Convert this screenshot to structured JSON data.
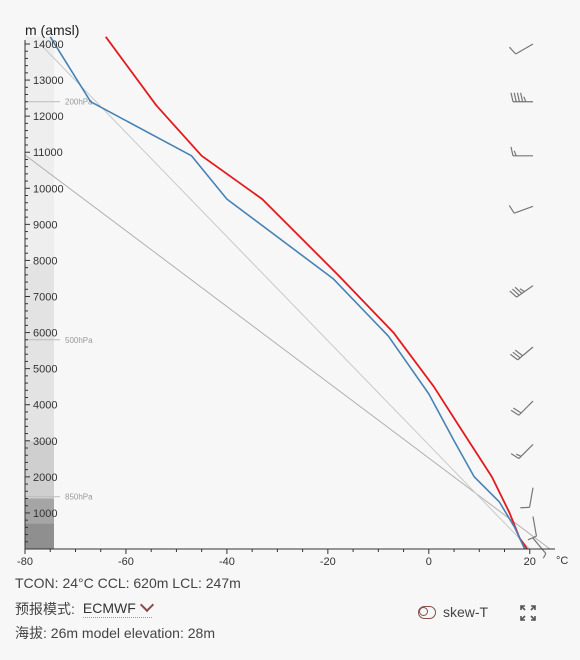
{
  "chart_data": {
    "type": "line",
    "title": "",
    "ylabel": "m (amsl)",
    "xlabel": "°C",
    "ylim": [
      0,
      14200
    ],
    "xlim": [
      -80,
      25
    ],
    "y_ticks": [
      1000,
      2000,
      3000,
      4000,
      5000,
      6000,
      7000,
      8000,
      9000,
      10000,
      11000,
      12000,
      13000,
      14000
    ],
    "x_ticks": [
      -80,
      -60,
      -40,
      -20,
      0,
      20
    ],
    "pressure_levels": [
      {
        "label": "200hPa",
        "height": 12400
      },
      {
        "label": "500hPa",
        "height": 5800
      },
      {
        "label": "850hPa",
        "height": 1450
      }
    ],
    "series": [
      {
        "color": "#e31a1c",
        "points": [
          [
            19.5,
            0
          ],
          [
            18,
            300
          ],
          [
            16,
            1000
          ],
          [
            12.5,
            2000
          ],
          [
            6.5,
            3300
          ],
          [
            1,
            4500
          ],
          [
            -7,
            6000
          ],
          [
            -18,
            7600
          ],
          [
            -33,
            9700
          ],
          [
            -45,
            10900
          ],
          [
            -54,
            12300
          ],
          [
            -64,
            14200
          ]
        ]
      },
      {
        "color": "#4682b4",
        "points": [
          [
            19,
            0
          ],
          [
            17,
            600
          ],
          [
            14,
            1300
          ],
          [
            9,
            2000
          ],
          [
            5,
            3000
          ],
          [
            0,
            4300
          ],
          [
            -8,
            5900
          ],
          [
            -19,
            7500
          ],
          [
            -40,
            9700
          ],
          [
            -47,
            10900
          ],
          [
            -67,
            12400
          ],
          [
            -75,
            14200
          ]
        ]
      }
    ],
    "reference_lines": [
      {
        "color": "#b0b0b0",
        "points": [
          [
            24,
            0
          ],
          [
            -95,
            12500
          ]
        ]
      },
      {
        "color": "#c8c8c8",
        "points": [
          [
            20,
            0
          ],
          [
            -77,
            14000
          ]
        ]
      }
    ],
    "wind_barbs": [
      {
        "height": 14000,
        "direction": 240,
        "speed": 10
      },
      {
        "height": 12400,
        "direction": 270,
        "speed": 45
      },
      {
        "height": 10900,
        "direction": 270,
        "speed": 15
      },
      {
        "height": 9500,
        "direction": 250,
        "speed": 10
      },
      {
        "height": 7300,
        "direction": 235,
        "speed": 35
      },
      {
        "height": 5600,
        "direction": 230,
        "speed": 30
      },
      {
        "height": 4100,
        "direction": 225,
        "speed": 20
      },
      {
        "height": 2900,
        "direction": 225,
        "speed": 15
      },
      {
        "height": 1700,
        "direction": 190,
        "speed": 10
      },
      {
        "height": 900,
        "direction": 170,
        "speed": 10
      },
      {
        "height": 300,
        "direction": 140,
        "speed": 5
      }
    ],
    "grid": false,
    "legend": "none"
  },
  "footer": {
    "stats": "TCON: 24°C CCL: 620m LCL: 247m",
    "model_label": "预报模式:",
    "model_value": "ECMWF",
    "elevation": "海拔: 26m model elevation: 28m",
    "skewt_label": "skew-T"
  },
  "colors": {
    "temperature": "#e31a1c",
    "dewpoint": "#4682b4",
    "accent": "#8a4b4b"
  },
  "icons": [
    "chevron-down-icon",
    "toggle-icon",
    "expand-icon"
  ]
}
